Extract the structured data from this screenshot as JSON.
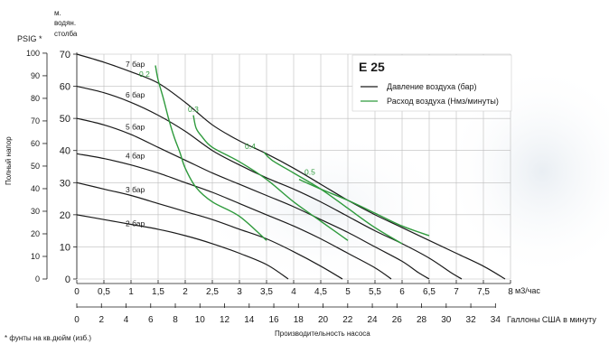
{
  "chart_data": {
    "type": "line",
    "title": "E 25",
    "left_axis": {
      "outer_unit": "PSIG *",
      "outer_ticks": [
        0,
        10,
        20,
        30,
        40,
        50,
        60,
        70,
        80,
        90,
        100
      ],
      "inner_unit_lines": [
        "м.",
        "водян.",
        "столба"
      ],
      "inner_ticks": [
        0,
        10,
        20,
        30,
        40,
        50,
        60,
        70
      ],
      "ylim": [
        0,
        70
      ],
      "ylabel": "Полный напор"
    },
    "bottom_axis": {
      "unit_m3h": "м3/час",
      "m3h_ticks": [
        0,
        0.5,
        1,
        1.5,
        2,
        2.5,
        3,
        3.5,
        4,
        4.5,
        5,
        5.5,
        6,
        6.5,
        7,
        7.5,
        8
      ],
      "m3h_tick_labels": [
        "0",
        "0,5",
        "1",
        "1,5",
        "2",
        "2,5",
        "3",
        "3,5",
        "4",
        "4,5",
        "5",
        "5,5",
        "6",
        "6,5",
        "7",
        "7,5",
        "8"
      ],
      "xlim": [
        0,
        8
      ],
      "gpm_ticks": [
        0,
        2,
        4,
        6,
        8,
        10,
        12,
        14,
        16,
        18,
        20,
        22,
        24,
        26,
        28,
        30,
        32,
        34
      ],
      "gpm_unit": "Галлоны США в минуту",
      "xlabel": "Производительность насоса"
    },
    "footnote": "* фунты на кв.дюйм (изб.)",
    "legend": {
      "items": [
        {
          "label": "Давление воздуха (бар)",
          "color": "#1a1a1a"
        },
        {
          "label": "Расход воздуха (Нмз/минуты)",
          "color": "#2e9a3c"
        }
      ]
    },
    "pressure_series": [
      {
        "name": "7 бар",
        "label_at": [
          0.9,
          66
        ],
        "values": [
          [
            0,
            70
          ],
          [
            0.5,
            67.5
          ],
          [
            1,
            64.5
          ],
          [
            1.5,
            61
          ],
          [
            2,
            55
          ],
          [
            2.5,
            48
          ],
          [
            3,
            43
          ],
          [
            3.5,
            39
          ],
          [
            4,
            34.5
          ],
          [
            4.5,
            29.5
          ],
          [
            5,
            24.5
          ],
          [
            5.5,
            20
          ],
          [
            6,
            16
          ],
          [
            6.5,
            12
          ],
          [
            7,
            8
          ],
          [
            7.5,
            4
          ],
          [
            7.9,
            0
          ]
        ]
      },
      {
        "name": "6 бар",
        "label_at": [
          0.9,
          56.5
        ],
        "values": [
          [
            0,
            60
          ],
          [
            0.5,
            58
          ],
          [
            1,
            55
          ],
          [
            1.5,
            51
          ],
          [
            2,
            46
          ],
          [
            2.5,
            40
          ],
          [
            3,
            35.5
          ],
          [
            3.5,
            31.5
          ],
          [
            4,
            28
          ],
          [
            4.5,
            24
          ],
          [
            5,
            19.5
          ],
          [
            5.5,
            15
          ],
          [
            6,
            11
          ],
          [
            6.5,
            6.5
          ],
          [
            6.9,
            2
          ],
          [
            7.1,
            0
          ]
        ]
      },
      {
        "name": "5 бар",
        "label_at": [
          0.9,
          46.5
        ],
        "values": [
          [
            0,
            50
          ],
          [
            0.5,
            48
          ],
          [
            1,
            45
          ],
          [
            1.5,
            41
          ],
          [
            2,
            37
          ],
          [
            2.5,
            33
          ],
          [
            3,
            29.5
          ],
          [
            3.5,
            26
          ],
          [
            4,
            22.5
          ],
          [
            4.5,
            18.5
          ],
          [
            5,
            14.5
          ],
          [
            5.5,
            10
          ],
          [
            6,
            5.5
          ],
          [
            6.3,
            2
          ],
          [
            6.5,
            0
          ]
        ]
      },
      {
        "name": "4 бар",
        "label_at": [
          0.9,
          37.5
        ],
        "values": [
          [
            0,
            39
          ],
          [
            0.5,
            37.5
          ],
          [
            1,
            35.5
          ],
          [
            1.5,
            33
          ],
          [
            2,
            30
          ],
          [
            2.5,
            27
          ],
          [
            3,
            23.5
          ],
          [
            3.5,
            20
          ],
          [
            4,
            16.5
          ],
          [
            4.5,
            12.5
          ],
          [
            5,
            8
          ],
          [
            5.5,
            3.5
          ],
          [
            5.8,
            0
          ]
        ]
      },
      {
        "name": "3 бар",
        "label_at": [
          0.9,
          27
        ],
        "values": [
          [
            0,
            30
          ],
          [
            0.5,
            28
          ],
          [
            1,
            26
          ],
          [
            1.5,
            23.5
          ],
          [
            2,
            21
          ],
          [
            2.5,
            18.5
          ],
          [
            3,
            15.5
          ],
          [
            3.5,
            12.5
          ],
          [
            4,
            8.5
          ],
          [
            4.5,
            4
          ],
          [
            4.9,
            0
          ]
        ]
      },
      {
        "name": "2 бар",
        "label_at": [
          0.9,
          16.5
        ],
        "values": [
          [
            0,
            20
          ],
          [
            0.5,
            18.5
          ],
          [
            1,
            17
          ],
          [
            1.5,
            15.5
          ],
          [
            2,
            13.5
          ],
          [
            2.5,
            11
          ],
          [
            3,
            8
          ],
          [
            3.5,
            4.5
          ],
          [
            3.9,
            0
          ]
        ]
      }
    ],
    "air_series": [
      {
        "name": "0.2",
        "label_at": [
          1.15,
          63
        ],
        "values": [
          [
            1.45,
            66.5
          ],
          [
            1.5,
            62
          ],
          [
            1.6,
            56
          ],
          [
            1.7,
            49.5
          ],
          [
            1.8,
            44
          ],
          [
            1.9,
            39.5
          ],
          [
            2,
            34.5
          ],
          [
            2.2,
            28.5
          ],
          [
            2.5,
            24
          ],
          [
            3,
            19.5
          ],
          [
            3.5,
            12
          ]
        ]
      },
      {
        "name": "0.3",
        "label_at": [
          2.05,
          52
        ],
        "values": [
          [
            2.15,
            51
          ],
          [
            2.2,
            47
          ],
          [
            2.3,
            44.5
          ],
          [
            2.5,
            41
          ],
          [
            3,
            36.5
          ],
          [
            3.5,
            31
          ],
          [
            4,
            24
          ],
          [
            4.5,
            18
          ],
          [
            5,
            12
          ]
        ]
      },
      {
        "name": "0.4",
        "label_at": [
          3.1,
          40.5
        ],
        "values": [
          [
            3.45,
            39.5
          ],
          [
            3.6,
            37
          ],
          [
            4,
            33
          ],
          [
            4.5,
            28
          ],
          [
            5,
            22
          ],
          [
            5.5,
            16
          ],
          [
            6,
            11
          ]
        ]
      },
      {
        "name": "0.5",
        "label_at": [
          4.2,
          32.5
        ],
        "values": [
          [
            4.1,
            31
          ],
          [
            4.5,
            28
          ],
          [
            5,
            24.5
          ],
          [
            5.5,
            20.5
          ],
          [
            6,
            16.5
          ],
          [
            6.5,
            13.5
          ]
        ]
      }
    ]
  }
}
